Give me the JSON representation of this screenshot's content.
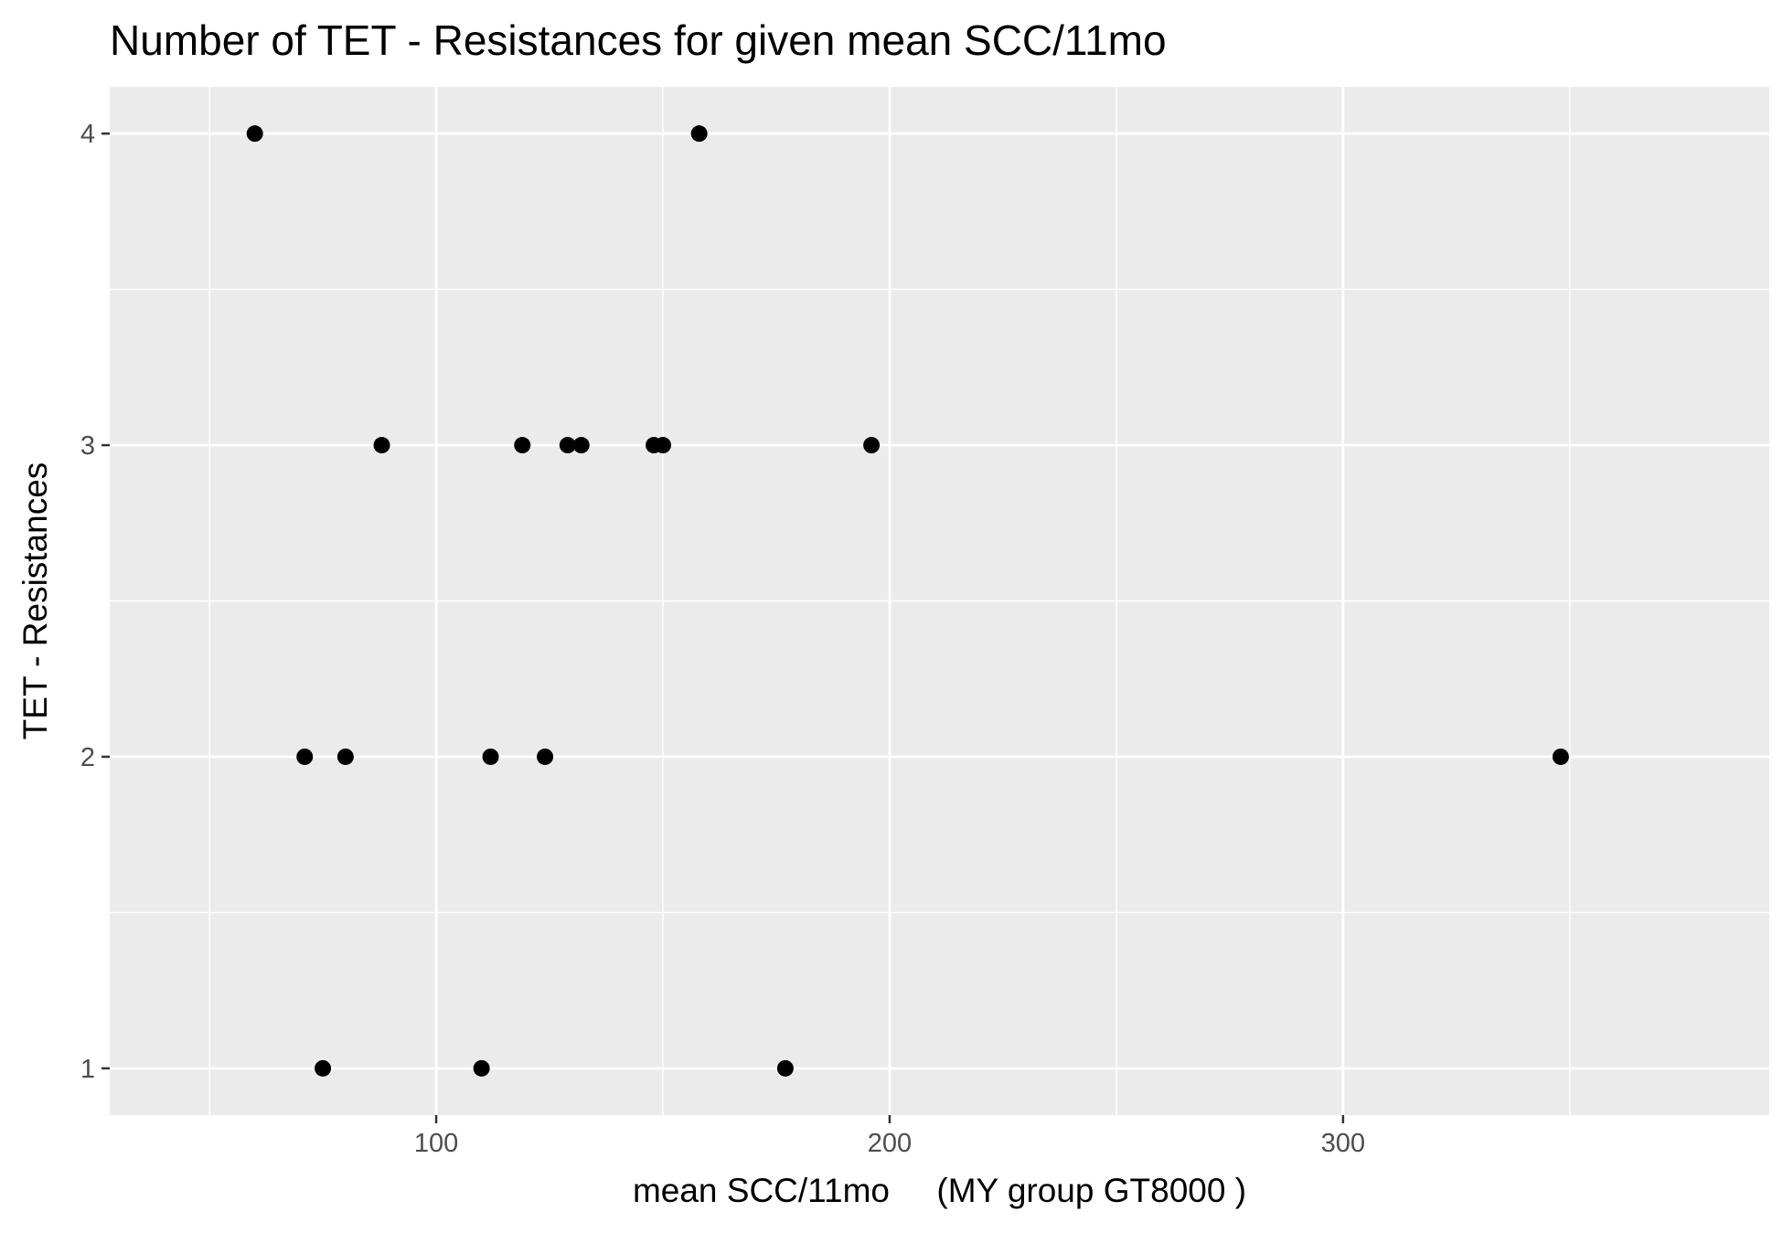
{
  "chart_data": {
    "type": "scatter",
    "title": "Number of TET - Resistances for given mean SCC/11mo",
    "xlabel": "mean SCC/11mo     (MY group GT8000 )",
    "ylabel": "TET - Resistances",
    "xlim": [
      28,
      394
    ],
    "ylim": [
      0.85,
      4.15
    ],
    "x_ticks": [
      100,
      200,
      300
    ],
    "x_tick_labels": [
      "100",
      "200",
      "300"
    ],
    "x_minor_ticks": [
      50,
      150,
      250,
      350
    ],
    "y_ticks": [
      1,
      2,
      3,
      4
    ],
    "y_tick_labels": [
      "1",
      "2",
      "3",
      "4"
    ],
    "y_minor_ticks": [
      1.5,
      2.5,
      3.5
    ],
    "grid": true,
    "colors": {
      "panel": "#ebebeb",
      "grid": "#ffffff",
      "point": "#000000",
      "tick": "#333333"
    },
    "points": [
      {
        "x": 60,
        "y": 4
      },
      {
        "x": 158,
        "y": 4
      },
      {
        "x": 88,
        "y": 3
      },
      {
        "x": 119,
        "y": 3
      },
      {
        "x": 129,
        "y": 3
      },
      {
        "x": 132,
        "y": 3
      },
      {
        "x": 148,
        "y": 3
      },
      {
        "x": 150,
        "y": 3
      },
      {
        "x": 196,
        "y": 3
      },
      {
        "x": 71,
        "y": 2
      },
      {
        "x": 80,
        "y": 2
      },
      {
        "x": 112,
        "y": 2
      },
      {
        "x": 124,
        "y": 2
      },
      {
        "x": 348,
        "y": 2
      },
      {
        "x": 75,
        "y": 1
      },
      {
        "x": 110,
        "y": 1
      },
      {
        "x": 177,
        "y": 1
      }
    ]
  }
}
